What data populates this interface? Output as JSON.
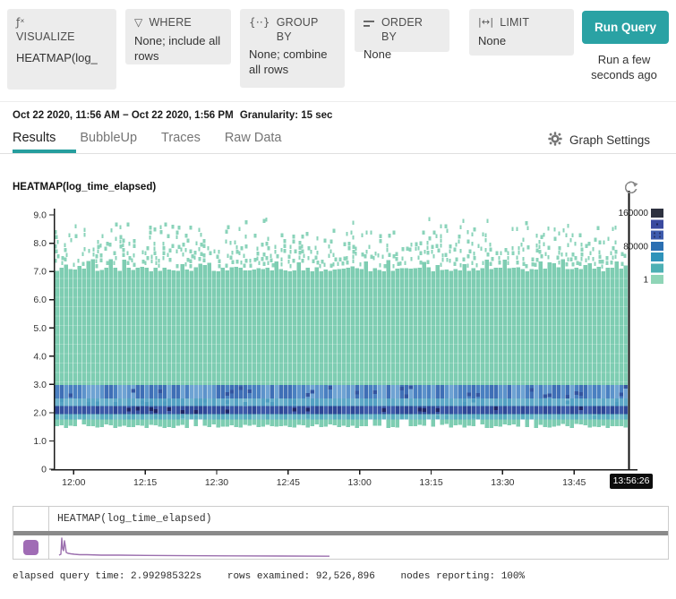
{
  "header": {
    "visualize": {
      "icon": "ƒˣ",
      "label": "VISUALIZE",
      "value": "HEATMAP(log_"
    },
    "where": {
      "icon": "▽",
      "label": "WHERE",
      "value": "None; include all rows"
    },
    "group_by": {
      "icon": "{··}",
      "label": "GROUP BY",
      "value": "None; combine all rows"
    },
    "order_by": {
      "label": "ORDER BY",
      "value": "None"
    },
    "limit": {
      "icon": "|↔|",
      "label": "LIMIT",
      "value": "None"
    },
    "run_query": {
      "label": "Run Query",
      "status": "Run a few seconds ago",
      "color": "#2AA2A4"
    }
  },
  "query_bar": {
    "time_range": "Oct 22 2020, 11:56 AM − Oct 22 2020, 1:56 PM",
    "granularity": "Granularity: 15 sec"
  },
  "tabs": [
    {
      "label": "Results",
      "active": true
    },
    {
      "label": "BubbleUp",
      "active": false
    },
    {
      "label": "Traces",
      "active": false
    },
    {
      "label": "Raw Data",
      "active": false
    }
  ],
  "graph_settings": {
    "label": "Graph Settings"
  },
  "chart_data": {
    "type": "heatmap",
    "title": "HEATMAP(log_time_elapsed)",
    "x_axis": {
      "start": "11:56",
      "end": "13:56:26",
      "total_minutes": 120.6,
      "tick_labels": [
        "12:00",
        "12:15",
        "12:30",
        "12:45",
        "13:00",
        "13:15",
        "13:30",
        "13:45"
      ],
      "tick_minutes": [
        4,
        19,
        34,
        49,
        64,
        79,
        94,
        109
      ]
    },
    "y_axis": {
      "min": 0,
      "max": 9.0,
      "tick_labels": [
        "9.0",
        "8.0",
        "7.0",
        "6.0",
        "5.0",
        "4.0",
        "3.0",
        "2.0",
        "1.0",
        "0"
      ]
    },
    "cursor_time": "13:56:26",
    "legend": {
      "tick_labels": [
        "160000",
        "80000",
        "1"
      ],
      "colors": [
        "#2D3140",
        "#3A4A9F",
        "#3D5BAD",
        "#2B6FB2",
        "#2F93BA",
        "#4DB0B4",
        "#8FD5B7"
      ]
    },
    "distribution": {
      "base_color": "#7ECDB2",
      "speckle_color": "#8AD3BA",
      "dense_range": [
        1.5,
        7.0
      ],
      "sparse_range": [
        7.0,
        8.85
      ],
      "hot_bands": [
        {
          "range": [
            2.5,
            2.98
          ],
          "colors": [
            "#5D93CB",
            "#4A80C1",
            "#3F6FB6",
            "#6FA3D3"
          ],
          "accent": "#33549F",
          "accent_p": 0.22
        },
        {
          "range": [
            2.24,
            2.5
          ],
          "colors": [
            "#5FA9C8",
            "#55A2C4",
            "#6FB3CD"
          ],
          "accent": "#4D9CC0",
          "accent_p": 0.1
        },
        {
          "range": [
            1.95,
            2.24
          ],
          "colors": [
            "#34509E",
            "#2E4896",
            "#3C5AA8"
          ],
          "accent": "#1F2766",
          "accent_p": 0.16
        },
        {
          "range": [
            1.76,
            1.95
          ],
          "colors": [
            "#63B5C5",
            "#58ADC0",
            "#70BCC9"
          ],
          "accent": "#58ADC0",
          "accent_p": 0.08
        }
      ]
    }
  },
  "summary_table": {
    "header": "HEATMAP(log_time_elapsed)",
    "row": {
      "swatch_color": "#A06CB5",
      "sparkline_color": "#9B6FAE",
      "sparkline_points": [
        [
          3,
          22
        ],
        [
          5,
          21
        ],
        [
          6,
          3
        ],
        [
          7,
          15
        ],
        [
          8,
          17
        ],
        [
          9,
          6
        ],
        [
          10,
          12
        ],
        [
          11,
          19
        ],
        [
          13,
          20
        ],
        [
          16,
          20.5
        ],
        [
          20,
          21
        ],
        [
          26,
          21.5
        ],
        [
          34,
          21.5
        ],
        [
          50,
          22
        ],
        [
          70,
          22
        ],
        [
          100,
          22.3
        ],
        [
          140,
          22.6
        ],
        [
          190,
          22.8
        ],
        [
          250,
          23
        ],
        [
          305,
          23.2
        ]
      ]
    }
  },
  "status_bar": {
    "elapsed_query_time": "elapsed query time: 2.992985322s",
    "rows_examined": "rows examined: 92,526,896",
    "nodes_reporting": "nodes reporting: 100%"
  }
}
